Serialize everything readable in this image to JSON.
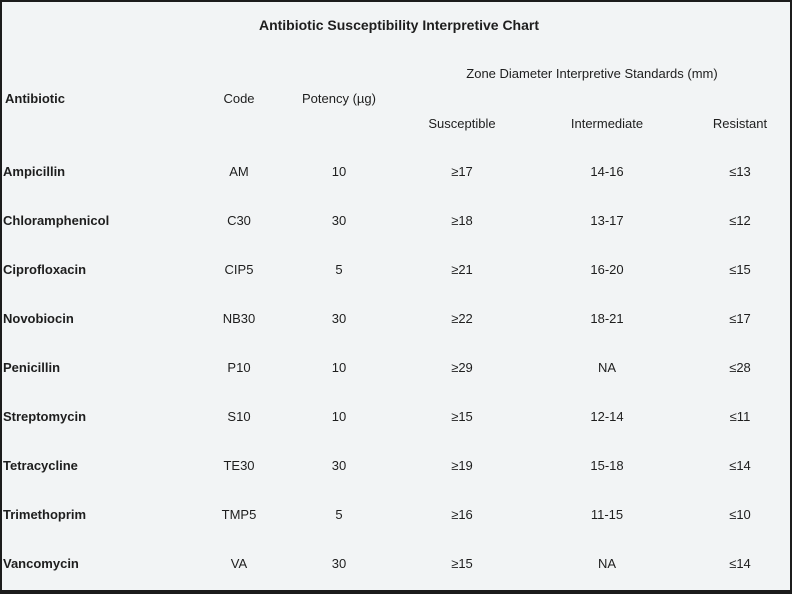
{
  "title": "Antibiotic Susceptibility Interpretive Chart",
  "zone_header": "Zone Diameter Interpretive Standards (mm)",
  "headers": {
    "antibiotic": "Antibiotic",
    "code": "Code",
    "potency": "Potency (µg)",
    "susceptible": "Susceptible",
    "intermediate": "Intermediate",
    "resistant": "Resistant"
  },
  "rows": [
    {
      "name": "Ampicillin",
      "code": "AM",
      "potency": "10",
      "susceptible": "≥17",
      "intermediate": "14-16",
      "resistant": "≤13"
    },
    {
      "name": "Chloramphenicol",
      "code": "C30",
      "potency": "30",
      "susceptible": "≥18",
      "intermediate": "13-17",
      "resistant": "≤12"
    },
    {
      "name": "Ciprofloxacin",
      "code": "CIP5",
      "potency": "5",
      "susceptible": "≥21",
      "intermediate": "16-20",
      "resistant": "≤15"
    },
    {
      "name": "Novobiocin",
      "code": "NB30",
      "potency": "30",
      "susceptible": "≥22",
      "intermediate": "18-21",
      "resistant": "≤17"
    },
    {
      "name": "Penicillin",
      "code": "P10",
      "potency": "10",
      "susceptible": "≥29",
      "intermediate": "NA",
      "resistant": "≤28"
    },
    {
      "name": "Streptomycin",
      "code": "S10",
      "potency": "10",
      "susceptible": "≥15",
      "intermediate": "12-14",
      "resistant": "≤11"
    },
    {
      "name": "Tetracycline",
      "code": "TE30",
      "potency": "30",
      "susceptible": "≥19",
      "intermediate": "15-18",
      "resistant": "≤14"
    },
    {
      "name": "Trimethoprim",
      "code": "TMP5",
      "potency": "5",
      "susceptible": "≥16",
      "intermediate": "11-15",
      "resistant": "≤10"
    },
    {
      "name": "Vancomycin",
      "code": "VA",
      "potency": "30",
      "susceptible": "≥15",
      "intermediate": "NA",
      "resistant": "≤14"
    }
  ]
}
